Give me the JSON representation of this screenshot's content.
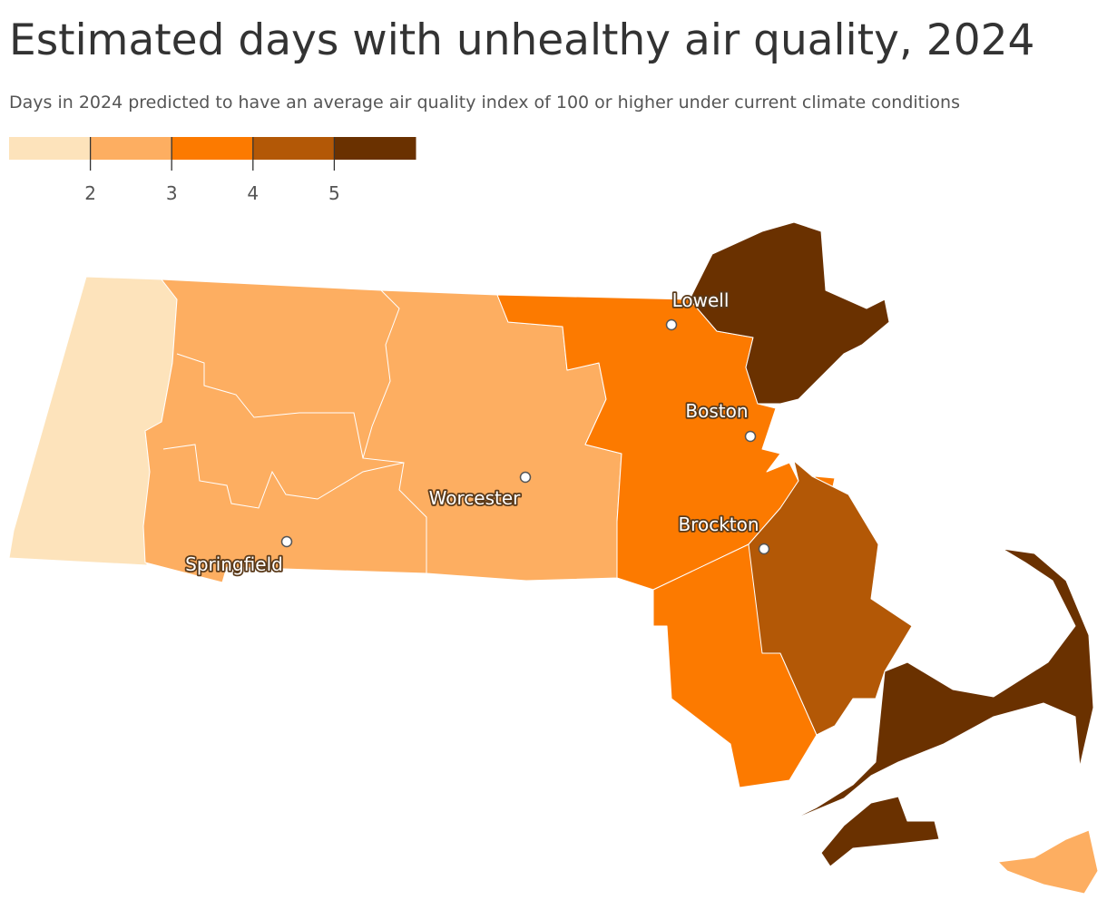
{
  "title": "Estimated days with unhealthy air quality, 2024",
  "subtitle": "Days in 2024 predicted to have an average air quality index of 100 or higher under current climate conditions",
  "legend": {
    "colors": [
      "#fde3bb",
      "#fdae61",
      "#fc7a00",
      "#b35806",
      "#6a3100"
    ],
    "ticks": [
      2,
      3,
      4,
      5
    ]
  },
  "cities": [
    "Lowell",
    "Boston",
    "Worcester",
    "Brockton",
    "Springfield"
  ]
}
